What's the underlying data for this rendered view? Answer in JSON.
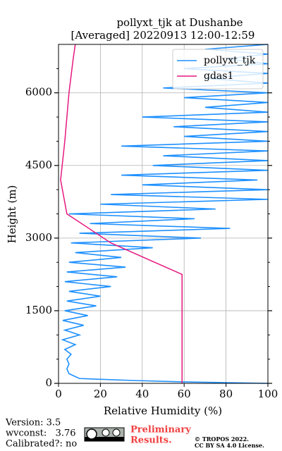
{
  "chart_data": {
    "type": "profile",
    "title": [
      "pollyxt_tjk at Dushanbe",
      "[Averaged] 20220913 12:00-12:59"
    ],
    "xlabel": "Relative Humidity (%)",
    "ylabel": "Height (m)",
    "xlim": [
      0,
      100
    ],
    "ylim": [
      0,
      7000
    ],
    "xticks": [
      0,
      20,
      40,
      60,
      80,
      100
    ],
    "yticks": [
      0,
      1500,
      3000,
      4500,
      6000
    ],
    "yminorticks": [
      500,
      1000,
      2000,
      2500,
      3500,
      4000,
      5000,
      5500,
      6500
    ],
    "grid": true,
    "legend": "upper right",
    "series": [
      {
        "name": "pollyxt_tjk",
        "color": "#1e90ff",
        "x": [
          100,
          60,
          35,
          10,
          5,
          4,
          5,
          4,
          6,
          3,
          8,
          2,
          10,
          3,
          12,
          2,
          14,
          3,
          18,
          4,
          20,
          5,
          25,
          3,
          28,
          4,
          32,
          5,
          30,
          8,
          45,
          6,
          68,
          10,
          82,
          15,
          65,
          5,
          75,
          20,
          100,
          25,
          100,
          40,
          95,
          30,
          100,
          45,
          100,
          50,
          100,
          30,
          100,
          60,
          100,
          55,
          100,
          40,
          100,
          70,
          100,
          60,
          100,
          50,
          100,
          70,
          100,
          60,
          100,
          80,
          100,
          70,
          100
        ],
        "y": [
          0,
          30,
          60,
          100,
          200,
          300,
          400,
          500,
          600,
          700,
          800,
          900,
          1000,
          1100,
          1200,
          1300,
          1400,
          1500,
          1600,
          1700,
          1800,
          1900,
          2000,
          2100,
          2200,
          2300,
          2400,
          2500,
          2600,
          2700,
          2800,
          2900,
          3000,
          3100,
          3200,
          3300,
          3400,
          3500,
          3600,
          3700,
          3800,
          3900,
          4000,
          4100,
          4200,
          4300,
          4400,
          4500,
          4600,
          4700,
          4800,
          4900,
          5000,
          5100,
          5200,
          5300,
          5400,
          5500,
          5600,
          5700,
          5800,
          5900,
          6000,
          6100,
          6200,
          6300,
          6400,
          6500,
          6600,
          6700,
          6800,
          6900,
          7000
        ]
      },
      {
        "name": "gdas1",
        "color": "#e6197f",
        "x": [
          59,
          59,
          25,
          4,
          1,
          3,
          5,
          7,
          8
        ],
        "y": [
          0,
          2250,
          2900,
          3500,
          4200,
          5000,
          6000,
          6700,
          7000
        ]
      }
    ],
    "footer": {
      "version": "Version: 3.5",
      "wvconst": "wvconst:   3.76",
      "calibrated": "Calibrated?: no",
      "preliminary": [
        "Preliminary",
        "Results."
      ],
      "copyright": [
        "© TROPOS 2022.",
        "CC BY SA 4.0 License."
      ]
    }
  }
}
